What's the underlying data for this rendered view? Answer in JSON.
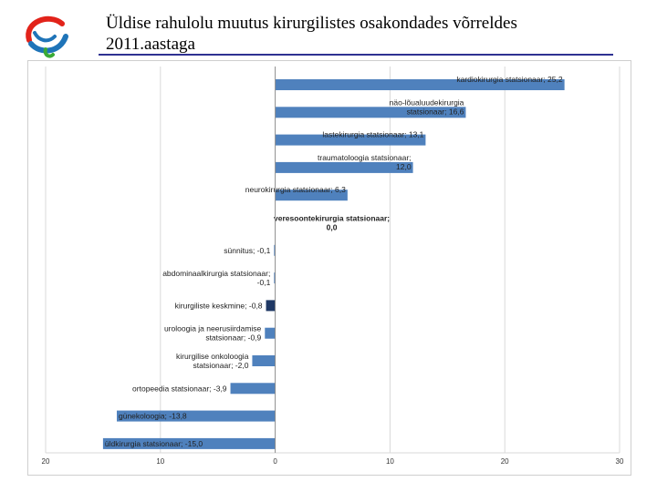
{
  "header": {
    "title_line1": "Üldise rahulolu muutus kirurgilistes osakondades võrreldes",
    "title_line2": "2011.aastaga"
  },
  "colors": {
    "bar": "#4f81bd",
    "bar_highlight": "#1f3864",
    "grid": "#d9d9d9",
    "axis": "#8c8c8c",
    "title_rule": "#2e3192",
    "logo_red": "#e2231a",
    "logo_blue": "#1f74b8",
    "logo_green": "#3aaa35"
  },
  "chart_data": {
    "type": "bar",
    "orientation": "horizontal",
    "title": "Üldise rahulolu muutus kirurgilistes osakondades võrreldes 2011.aastaga",
    "xlim": [
      -20,
      30
    ],
    "ticks": [
      {
        "value": -20,
        "label": "20"
      },
      {
        "value": -10,
        "label": "10"
      },
      {
        "value": 0,
        "label": "0"
      },
      {
        "value": 10,
        "label": "10"
      },
      {
        "value": 20,
        "label": "20"
      },
      {
        "value": 30,
        "label": "30"
      }
    ],
    "bars": [
      {
        "value": 25.2,
        "label_lines": [
          "kardiokirurgia statsionaar; 25,2"
        ]
      },
      {
        "value": 16.6,
        "label_lines": [
          "näo-lõualuudekirurgia",
          "statsionaar; 16,6"
        ]
      },
      {
        "value": 13.1,
        "label_lines": [
          "lastekirurgia statsionaar; 13,1"
        ]
      },
      {
        "value": 12.0,
        "label_lines": [
          "traumatoloogia statsionaar;",
          "12,0"
        ]
      },
      {
        "value": 6.3,
        "label_lines": [
          "neurokirurgia statsionaar; 6,3"
        ]
      },
      {
        "value": 0.0,
        "label_lines": [
          "veresoontekirurgia statsionaar;",
          "0,0"
        ],
        "bold": true
      },
      {
        "value": -0.1,
        "label_lines": [
          "sünnitus; -0,1"
        ]
      },
      {
        "value": -0.1,
        "label_lines": [
          "abdominaalkirurgia statsionaar;",
          "-0,1"
        ]
      },
      {
        "value": -0.8,
        "label_lines": [
          "kirurgiliste keskmine; -0,8"
        ],
        "highlight": true
      },
      {
        "value": -0.9,
        "label_lines": [
          "uroloogia ja neerusiirdamise",
          "statsionaar; -0,9"
        ]
      },
      {
        "value": -2.0,
        "label_lines": [
          "kirurgilise onkoloogia",
          "statsionaar; -2,0"
        ]
      },
      {
        "value": -3.9,
        "label_lines": [
          "ortopeedia statsionaar; -3,9"
        ]
      },
      {
        "value": -13.8,
        "label_lines": [
          "günekoloogia; -13,8"
        ]
      },
      {
        "value": -15.0,
        "label_lines": [
          "üldkirurgia statsionaar; -15,0"
        ]
      }
    ]
  }
}
